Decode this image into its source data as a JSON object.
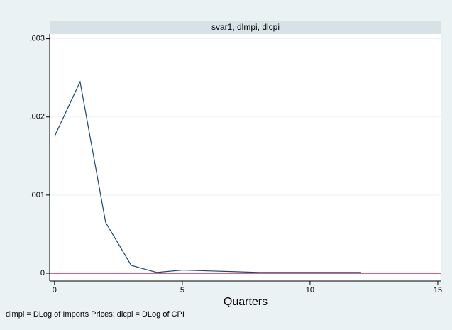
{
  "chart_data": {
    "type": "line",
    "panel_title": "svar1, dlmpi, dlcpi",
    "xlabel": "Quarters",
    "note": "dlmpi = DLog of Imports Prices; dlcpi = DLog of CPI",
    "x": [
      0,
      1,
      2,
      3,
      4,
      5,
      6,
      7,
      8,
      9,
      10,
      11,
      12
    ],
    "values": [
      0.00175,
      0.00245,
      0.00065,
      0.0001,
      1e-05,
      4e-05,
      3e-05,
      2e-05,
      1e-05,
      1e-05,
      1e-05,
      1e-05,
      1e-05
    ],
    "color": "#1a476f",
    "xlim": [
      -0.19,
      15.14
    ],
    "ylim": [
      -0.0001,
      0.00306
    ],
    "xticks": [
      0,
      5,
      10,
      15
    ],
    "yticks": [
      0,
      {
        "value": 0.001,
        "label": ".001"
      },
      {
        "value": 0.002,
        "label": ".002"
      },
      {
        "value": 0.003,
        "label": ".003"
      }
    ],
    "grid": true,
    "reference_line": {
      "value": 0,
      "color": "#c10534"
    }
  }
}
